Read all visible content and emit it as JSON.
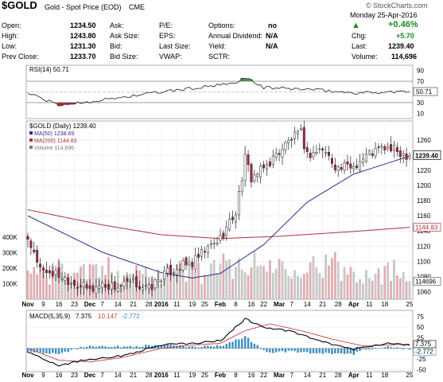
{
  "header": {
    "symbol": "$GOLD",
    "name": "Gold - Spot Price (EOD)",
    "exchange": "CME",
    "copyright": "© StockCharts.com",
    "date": "Monday  25-Apr-2016",
    "change_pct": "+0.46%",
    "up_arrow": "▲",
    "fields": [
      {
        "label": "Open:",
        "value": "1234.50"
      },
      {
        "label": "High:",
        "value": "1243.80"
      },
      {
        "label": "Low:",
        "value": "1231.30"
      },
      {
        "label": "Prev Close:",
        "value": "1233.70"
      },
      {
        "label": "Ask:",
        "value": ""
      },
      {
        "label": "Ask Size:",
        "value": ""
      },
      {
        "label": "Bid:",
        "value": ""
      },
      {
        "label": "Bid Size:",
        "value": ""
      },
      {
        "label": "P/E:",
        "value": ""
      },
      {
        "label": "EPS:",
        "value": ""
      },
      {
        "label": "Last Size:",
        "value": ""
      },
      {
        "label": "VWAP:",
        "value": ""
      },
      {
        "label": "Options:",
        "value": "no"
      },
      {
        "label": "Annual Dividend:",
        "value": "N/A"
      },
      {
        "label": "Yield:",
        "value": "N/A"
      },
      {
        "label": "SCTR:",
        "value": ""
      },
      {
        "label": "Chg:",
        "value": "+5.70"
      },
      {
        "label": "Last:",
        "value": "1239.40"
      },
      {
        "label": "Volume:",
        "value": "114,696"
      }
    ]
  },
  "rsi_panel": {
    "label": "RSI(14) 50.71",
    "ticks": [
      "90",
      "70",
      "50",
      "30",
      "10"
    ],
    "last_value": "50.71"
  },
  "price_panel": {
    "label": "$GOLD (Daily) 1239.40",
    "legend": [
      {
        "text": "MA(50) 1238.69",
        "color": "#2b2b8f"
      },
      {
        "text": "MA(200) 1144.83",
        "color": "#b0303a"
      },
      {
        "text": "Volume 114,696",
        "color": "#777777"
      }
    ],
    "ticks": [
      "1260",
      "1240",
      "1220",
      "1200",
      "1180",
      "1160",
      "1140",
      "1120",
      "1100",
      "1080",
      "1060"
    ],
    "last_price": "1239.40",
    "ma200_tag": "1144.83",
    "volume_tag": "114696",
    "volume_ticks": [
      "400K",
      "300K",
      "200K",
      "100K"
    ]
  },
  "macd_panel": {
    "label": "MACD(5,35,9)",
    "v1": "7.375",
    "v2": "10.147",
    "v3": "-2.772",
    "ticks": [
      "75",
      "50",
      "25",
      "0",
      "-25",
      "-50"
    ],
    "tag_macd": "7.375",
    "tag_hist": "-2.772"
  },
  "x_axis": [
    "Nov",
    "9",
    "16",
    "23",
    "Dec",
    "7",
    "14",
    "21",
    "28",
    "2016",
    "11",
    "19",
    "25",
    "Feb",
    "8",
    "16",
    "22",
    "Mar",
    "7",
    "14",
    "21",
    "28",
    "Apr",
    "11",
    "18",
    "25"
  ],
  "colors": {
    "up_candle": "#ffffff",
    "down_candle": "#b0243a",
    "ma50": "#2b2b8f",
    "ma200": "#b0303a",
    "volume_up": "#c9c9c9",
    "volume_down": "#e9a8ae",
    "rsi_line": "#333333",
    "rsi_overbought_fill": "#4f8f4f",
    "rsi_oversold_fill": "#b0303a",
    "macd_line": "#000000",
    "signal_line": "#d04040",
    "macd_hist": "#3b8fc4",
    "positive": "#1a8a1a"
  },
  "chart_data": {
    "type": "candlestick",
    "title": "$GOLD (Daily) 1239.40",
    "period": "Nov 2015 - 25-Apr-2016",
    "price_ylim": [
      1050,
      1285
    ],
    "price_close_keypoints": [
      {
        "x": "Nov 2",
        "y": 1122
      },
      {
        "x": "Nov 9",
        "y": 1088
      },
      {
        "x": "Nov 16",
        "y": 1082
      },
      {
        "x": "Nov 23",
        "y": 1072
      },
      {
        "x": "Dec 1",
        "y": 1062
      },
      {
        "x": "Dec 7",
        "y": 1070
      },
      {
        "x": "Dec 14",
        "y": 1066
      },
      {
        "x": "Dec 21",
        "y": 1072
      },
      {
        "x": "Dec 28",
        "y": 1063
      },
      {
        "x": "Jan 4 2016",
        "y": 1080
      },
      {
        "x": "Jan 11",
        "y": 1092
      },
      {
        "x": "Jan 19",
        "y": 1097
      },
      {
        "x": "Jan 25",
        "y": 1113
      },
      {
        "x": "Feb 1",
        "y": 1130
      },
      {
        "x": "Feb 8",
        "y": 1165
      },
      {
        "x": "Feb 11",
        "y": 1235
      },
      {
        "x": "Feb 16",
        "y": 1210
      },
      {
        "x": "Feb 22",
        "y": 1222
      },
      {
        "x": "Mar 1",
        "y": 1245
      },
      {
        "x": "Mar 7",
        "y": 1262
      },
      {
        "x": "Mar 10",
        "y": 1268
      },
      {
        "x": "Mar 14",
        "y": 1240
      },
      {
        "x": "Mar 21",
        "y": 1248
      },
      {
        "x": "Mar 28",
        "y": 1222
      },
      {
        "x": "Apr 4",
        "y": 1226
      },
      {
        "x": "Apr 11",
        "y": 1242
      },
      {
        "x": "Apr 18",
        "y": 1250
      },
      {
        "x": "Apr 25",
        "y": 1239.4
      }
    ],
    "ma50_keypoints": [
      {
        "x": "Nov 2",
        "y": 1160
      },
      {
        "x": "Nov 16",
        "y": 1140
      },
      {
        "x": "Dec 7",
        "y": 1112
      },
      {
        "x": "Jan 4 2016",
        "y": 1085
      },
      {
        "x": "Jan 19",
        "y": 1078
      },
      {
        "x": "Feb 1",
        "y": 1084
      },
      {
        "x": "Feb 22",
        "y": 1122
      },
      {
        "x": "Mar 14",
        "y": 1178
      },
      {
        "x": "Apr 4",
        "y": 1215
      },
      {
        "x": "Apr 25",
        "y": 1238.69
      }
    ],
    "ma200_keypoints": [
      {
        "x": "Nov 2",
        "y": 1168
      },
      {
        "x": "Dec 7",
        "y": 1148
      },
      {
        "x": "Jan 4 2016",
        "y": 1135
      },
      {
        "x": "Feb 1",
        "y": 1130
      },
      {
        "x": "Mar 1",
        "y": 1133
      },
      {
        "x": "Apr 1",
        "y": 1139
      },
      {
        "x": "Apr 25",
        "y": 1144.83
      }
    ],
    "rsi": {
      "ylim": [
        0,
        100
      ],
      "last": 50.71,
      "keypoints": [
        {
          "x": "Nov 2",
          "y": 48
        },
        {
          "x": "Nov 16",
          "y": 25
        },
        {
          "x": "Dec 7",
          "y": 35
        },
        {
          "x": "Jan 4 2016",
          "y": 50
        },
        {
          "x": "Feb 8",
          "y": 66
        },
        {
          "x": "Feb 11",
          "y": 78
        },
        {
          "x": "Feb 22",
          "y": 58
        },
        {
          "x": "Mar 14",
          "y": 55
        },
        {
          "x": "Apr 4",
          "y": 48
        },
        {
          "x": "Apr 25",
          "y": 50.71
        }
      ]
    },
    "volume": {
      "ylim": [
        0,
        450000
      ],
      "last": 114696
    },
    "macd": {
      "ylim": [
        -55,
        90
      ],
      "macd": 7.375,
      "signal": 10.147,
      "histogram": -2.772
    }
  }
}
